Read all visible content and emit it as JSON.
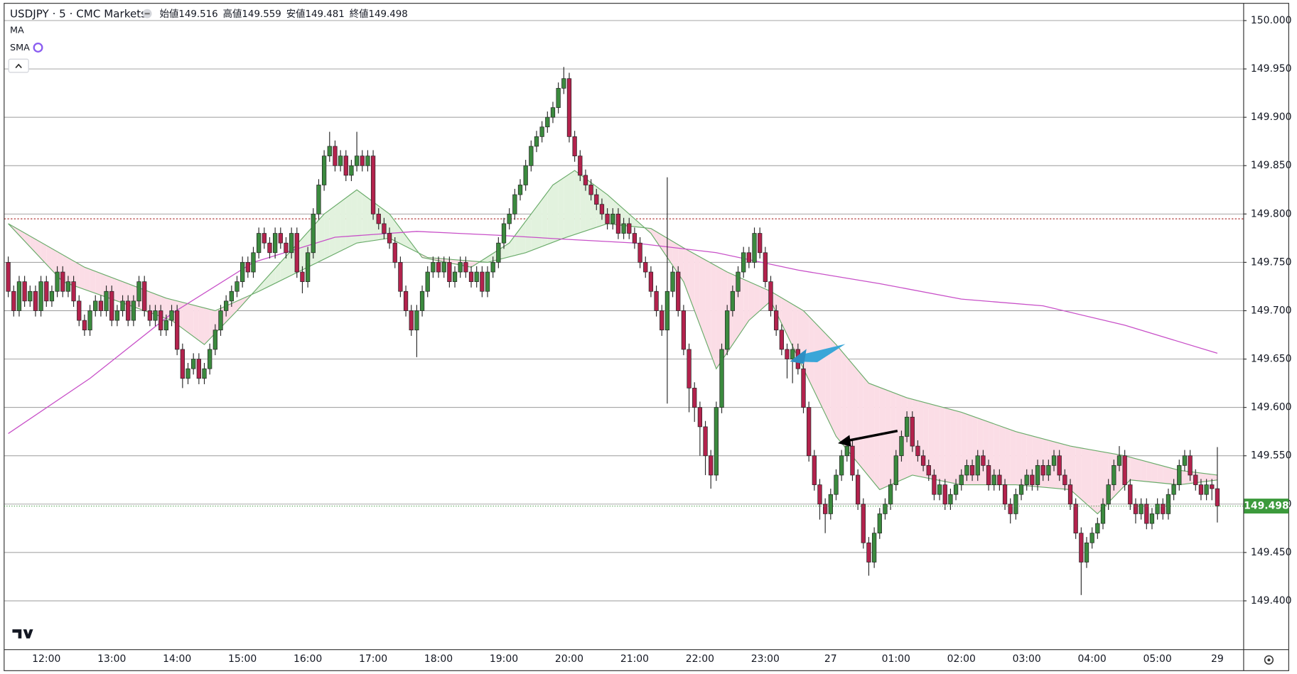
{
  "chart_data": {
    "type": "candlestick",
    "title": "USDJPY · 5 · CMC Markets",
    "ohlc_labels": [
      "始値",
      "高値",
      "安値",
      "終値"
    ],
    "indicators": [
      "MA",
      "SMA"
    ],
    "categories": [
      null,
      null,
      null,
      null,
      null,
      null,
      null,
      "12:00",
      null,
      null,
      null,
      null,
      null,
      null,
      null,
      null,
      null,
      null,
      null,
      "13:00",
      null,
      null,
      null,
      null,
      null,
      null,
      null,
      null,
      null,
      null,
      null,
      "14:00",
      null,
      null,
      null,
      null,
      null,
      null,
      null,
      null,
      null,
      null,
      null,
      "15:00",
      null,
      null,
      null,
      null,
      null,
      null,
      null,
      null,
      null,
      null,
      null,
      "16:00",
      null,
      null,
      null,
      null,
      null,
      null,
      null,
      null,
      null,
      null,
      null,
      "17:00",
      null,
      null,
      null,
      null,
      null,
      null,
      null,
      null,
      null,
      null,
      null,
      "18:00",
      null,
      null,
      null,
      null,
      null,
      null,
      null,
      null,
      null,
      null,
      null,
      "19:00",
      null,
      null,
      null,
      null,
      null,
      null,
      null,
      null,
      null,
      null,
      null,
      "20:00",
      null,
      null,
      null,
      null,
      null,
      null,
      null,
      null,
      null,
      null,
      null,
      "21:00",
      null,
      null,
      null,
      null,
      null,
      null,
      null,
      null,
      null,
      null,
      null,
      "22:00",
      null,
      null,
      null,
      null,
      null,
      null,
      null,
      null,
      null,
      null,
      null,
      "23:00",
      null,
      null,
      null,
      null,
      null,
      null,
      null,
      null,
      null,
      null,
      null,
      "27",
      null,
      null,
      null,
      null,
      null,
      null,
      null,
      null,
      null,
      null,
      null,
      "01:00",
      null,
      null,
      null,
      null,
      null,
      null,
      null,
      null,
      null,
      null,
      null,
      "02:00",
      null,
      null,
      null,
      null,
      null,
      null,
      null,
      null,
      null,
      null,
      null,
      "03:00",
      null,
      null,
      null,
      null,
      null,
      null,
      null,
      null,
      null,
      null,
      null,
      "04:00",
      null,
      null,
      null,
      null,
      null,
      null,
      null,
      null,
      null,
      null,
      null,
      "05:00",
      null,
      null,
      null,
      null,
      null,
      null,
      null,
      null,
      null,
      null,
      "29"
    ],
    "open": [
      149.75,
      149.72,
      149.7,
      149.73,
      149.71,
      149.72,
      149.7,
      149.73,
      149.71,
      149.72,
      149.74,
      149.72,
      149.73,
      149.71,
      149.69,
      149.68,
      149.7,
      149.71,
      149.7,
      149.72,
      149.69,
      149.7,
      149.71,
      149.69,
      149.71,
      149.73,
      149.7,
      149.69,
      149.7,
      149.68,
      149.69,
      149.7,
      149.66,
      149.63,
      149.64,
      149.65,
      149.63,
      149.64,
      149.66,
      149.68,
      149.7,
      149.71,
      149.72,
      149.73,
      149.75,
      149.74,
      149.76,
      149.78,
      149.77,
      149.76,
      149.78,
      149.77,
      149.76,
      149.78,
      149.74,
      149.73,
      149.76,
      149.8,
      149.83,
      149.86,
      149.87,
      149.85,
      149.86,
      149.84,
      149.85,
      149.86,
      149.85,
      149.86,
      149.8,
      149.79,
      149.78,
      149.77,
      149.75,
      149.72,
      149.7,
      149.68,
      149.7,
      149.72,
      149.74,
      149.75,
      149.74,
      149.75,
      149.73,
      149.74,
      149.75,
      149.74,
      149.73,
      149.74,
      149.72,
      149.74,
      149.75,
      149.77,
      149.79,
      149.8,
      149.82,
      149.83,
      149.85,
      149.87,
      149.88,
      149.89,
      149.9,
      149.91,
      149.93,
      149.94,
      149.88,
      149.86,
      149.84,
      149.83,
      149.82,
      149.81,
      149.8,
      149.79,
      149.8,
      149.78,
      149.79,
      149.78,
      149.77,
      149.75,
      149.74,
      149.72,
      149.7,
      149.68,
      149.72,
      149.74,
      149.7,
      149.66,
      149.62,
      149.6,
      149.58,
      149.55,
      149.53,
      149.6,
      149.66,
      149.7,
      149.72,
      149.74,
      149.76,
      149.75,
      149.78,
      149.76,
      149.73,
      149.7,
      149.68,
      149.66,
      149.65,
      149.66,
      149.64,
      149.6,
      149.55,
      149.52,
      149.5,
      149.49,
      149.51,
      149.53,
      149.55,
      149.56,
      149.53,
      149.5,
      149.46,
      149.44,
      149.47,
      149.49,
      149.5,
      149.52,
      149.55,
      149.57,
      149.59,
      149.56,
      149.55,
      149.54,
      149.53,
      149.51,
      149.52,
      149.5,
      149.51,
      149.52,
      149.53,
      149.54,
      149.53,
      149.55,
      149.54,
      149.52,
      149.53,
      149.52,
      149.5,
      149.49,
      149.51,
      149.52,
      149.53,
      149.52,
      149.54,
      149.53,
      149.54,
      149.55,
      149.53,
      149.52,
      149.5,
      149.47,
      149.44,
      149.46,
      149.47,
      149.48,
      149.5,
      149.52,
      149.54,
      149.55,
      149.52,
      149.5,
      149.49,
      149.5,
      149.48,
      149.49,
      149.5,
      149.49,
      149.51,
      149.52,
      149.54,
      149.55,
      149.53,
      149.52,
      149.51,
      149.52,
      149.516
    ],
    "high": [
      149.756,
      149.726,
      149.736,
      149.736,
      149.726,
      149.726,
      149.736,
      149.736,
      149.726,
      149.746,
      149.746,
      149.736,
      149.736,
      149.716,
      149.696,
      149.706,
      149.716,
      149.716,
      149.726,
      149.726,
      149.706,
      149.716,
      149.716,
      149.716,
      149.736,
      149.736,
      149.706,
      149.706,
      149.706,
      149.696,
      149.706,
      149.706,
      149.666,
      149.646,
      149.656,
      149.656,
      149.646,
      149.666,
      149.686,
      149.706,
      149.716,
      149.726,
      149.736,
      149.756,
      149.756,
      149.766,
      149.786,
      149.786,
      149.776,
      149.786,
      149.786,
      149.776,
      149.786,
      149.786,
      149.746,
      149.766,
      149.806,
      149.836,
      149.866,
      149.885,
      149.876,
      149.866,
      149.866,
      149.856,
      149.885,
      149.866,
      149.866,
      149.866,
      149.806,
      149.796,
      149.786,
      149.776,
      149.756,
      149.726,
      149.706,
      149.706,
      149.726,
      149.746,
      149.756,
      149.756,
      149.756,
      149.756,
      149.746,
      149.756,
      149.756,
      149.746,
      149.746,
      149.746,
      149.746,
      149.756,
      149.776,
      149.796,
      149.806,
      149.826,
      149.836,
      149.856,
      149.876,
      149.886,
      149.896,
      149.906,
      149.916,
      149.936,
      149.952,
      149.946,
      149.886,
      149.866,
      149.846,
      149.836,
      149.826,
      149.816,
      149.806,
      149.806,
      149.806,
      149.796,
      149.796,
      149.786,
      149.776,
      149.756,
      149.746,
      149.726,
      149.706,
      149.838,
      149.746,
      149.746,
      149.706,
      149.666,
      149.626,
      149.606,
      149.586,
      149.556,
      149.606,
      149.666,
      149.706,
      149.726,
      149.746,
      149.766,
      149.766,
      149.786,
      149.786,
      149.766,
      149.736,
      149.706,
      149.686,
      149.666,
      149.666,
      149.666,
      149.646,
      149.606,
      149.556,
      149.526,
      149.506,
      149.516,
      149.536,
      149.556,
      149.566,
      149.566,
      149.536,
      149.506,
      149.466,
      149.476,
      149.496,
      149.506,
      149.526,
      149.556,
      149.576,
      149.596,
      149.596,
      149.566,
      149.556,
      149.546,
      149.536,
      149.526,
      149.526,
      149.516,
      149.526,
      149.536,
      149.546,
      149.546,
      149.556,
      149.556,
      149.546,
      149.536,
      149.536,
      149.526,
      149.506,
      149.516,
      149.526,
      149.536,
      149.536,
      149.546,
      149.546,
      149.546,
      149.556,
      149.556,
      149.536,
      149.526,
      149.506,
      149.476,
      149.466,
      149.476,
      149.486,
      149.506,
      149.526,
      149.546,
      149.56,
      149.556,
      149.526,
      149.506,
      149.506,
      149.506,
      149.496,
      149.506,
      149.506,
      149.516,
      149.526,
      149.546,
      149.556,
      149.556,
      149.536,
      149.526,
      149.526,
      149.526,
      149.559
    ],
    "low": [
      149.714,
      149.694,
      149.694,
      149.704,
      149.704,
      149.694,
      149.694,
      149.704,
      149.704,
      149.714,
      149.714,
      149.714,
      149.704,
      149.684,
      149.674,
      149.674,
      149.694,
      149.694,
      149.694,
      149.684,
      149.684,
      149.694,
      149.684,
      149.684,
      149.704,
      149.694,
      149.684,
      149.684,
      149.674,
      149.674,
      149.684,
      149.654,
      149.62,
      149.624,
      149.634,
      149.624,
      149.624,
      149.634,
      149.654,
      149.674,
      149.694,
      149.704,
      149.714,
      149.724,
      149.734,
      149.734,
      149.754,
      149.764,
      149.754,
      149.754,
      149.764,
      149.754,
      149.754,
      149.734,
      149.718,
      149.724,
      149.754,
      149.794,
      149.824,
      149.854,
      149.844,
      149.844,
      149.834,
      149.834,
      149.844,
      149.844,
      149.844,
      149.794,
      149.784,
      149.774,
      149.764,
      149.744,
      149.714,
      149.694,
      149.674,
      149.652,
      149.694,
      149.714,
      149.734,
      149.734,
      149.734,
      149.724,
      149.724,
      149.734,
      149.734,
      149.724,
      149.724,
      149.714,
      149.714,
      149.734,
      149.744,
      149.764,
      149.784,
      149.794,
      149.814,
      149.824,
      149.844,
      149.864,
      149.874,
      149.884,
      149.894,
      149.904,
      149.924,
      149.874,
      149.854,
      149.834,
      149.824,
      149.814,
      149.804,
      149.794,
      149.784,
      149.784,
      149.774,
      149.774,
      149.774,
      149.764,
      149.744,
      149.734,
      149.714,
      149.694,
      149.674,
      149.604,
      149.714,
      149.694,
      149.654,
      149.595,
      149.585,
      149.55,
      149.53,
      149.516,
      149.524,
      149.594,
      149.654,
      149.694,
      149.714,
      149.734,
      149.744,
      149.744,
      149.754,
      149.724,
      149.694,
      149.674,
      149.654,
      149.63,
      149.625,
      149.634,
      149.594,
      149.544,
      149.514,
      149.484,
      149.47,
      149.484,
      149.504,
      149.524,
      149.544,
      149.524,
      149.494,
      149.454,
      149.426,
      149.434,
      149.464,
      149.484,
      149.494,
      149.514,
      149.544,
      149.564,
      149.554,
      149.544,
      149.534,
      149.524,
      149.504,
      149.504,
      149.494,
      149.494,
      149.504,
      149.514,
      149.524,
      149.524,
      149.524,
      149.534,
      149.514,
      149.514,
      149.514,
      149.494,
      149.48,
      149.484,
      149.504,
      149.514,
      149.514,
      149.514,
      149.524,
      149.524,
      149.534,
      149.524,
      149.514,
      149.494,
      149.464,
      149.406,
      149.434,
      149.454,
      149.464,
      149.474,
      149.494,
      149.514,
      149.534,
      149.514,
      149.494,
      149.48,
      149.484,
      149.474,
      149.474,
      149.484,
      149.484,
      149.484,
      149.504,
      149.514,
      149.534,
      149.524,
      149.514,
      149.504,
      149.504,
      149.504,
      149.481
    ],
    "close": [
      149.72,
      149.7,
      149.73,
      149.71,
      149.72,
      149.7,
      149.73,
      149.71,
      149.72,
      149.74,
      149.72,
      149.73,
      149.71,
      149.69,
      149.68,
      149.7,
      149.71,
      149.7,
      149.72,
      149.69,
      149.7,
      149.71,
      149.69,
      149.71,
      149.73,
      149.7,
      149.69,
      149.7,
      149.68,
      149.69,
      149.7,
      149.66,
      149.63,
      149.64,
      149.65,
      149.63,
      149.64,
      149.66,
      149.68,
      149.7,
      149.71,
      149.72,
      149.73,
      149.75,
      149.74,
      149.76,
      149.78,
      149.77,
      149.76,
      149.78,
      149.77,
      149.76,
      149.78,
      149.74,
      149.73,
      149.76,
      149.8,
      149.83,
      149.86,
      149.87,
      149.85,
      149.86,
      149.84,
      149.85,
      149.86,
      149.85,
      149.86,
      149.8,
      149.79,
      149.78,
      149.77,
      149.75,
      149.72,
      149.7,
      149.68,
      149.7,
      149.72,
      149.74,
      149.75,
      149.74,
      149.75,
      149.73,
      149.74,
      149.75,
      149.74,
      149.73,
      149.74,
      149.72,
      149.74,
      149.75,
      149.77,
      149.79,
      149.8,
      149.82,
      149.83,
      149.85,
      149.87,
      149.88,
      149.89,
      149.9,
      149.91,
      149.93,
      149.94,
      149.88,
      149.86,
      149.84,
      149.83,
      149.82,
      149.81,
      149.8,
      149.79,
      149.8,
      149.78,
      149.79,
      149.78,
      149.77,
      149.75,
      149.74,
      149.72,
      149.7,
      149.68,
      149.72,
      149.74,
      149.7,
      149.66,
      149.62,
      149.6,
      149.58,
      149.55,
      149.53,
      149.6,
      149.66,
      149.7,
      149.72,
      149.74,
      149.76,
      149.75,
      149.78,
      149.76,
      149.73,
      149.7,
      149.68,
      149.66,
      149.65,
      149.66,
      149.64,
      149.6,
      149.55,
      149.52,
      149.5,
      149.49,
      149.51,
      149.53,
      149.55,
      149.56,
      149.53,
      149.5,
      149.46,
      149.44,
      149.47,
      149.49,
      149.5,
      149.52,
      149.55,
      149.57,
      149.59,
      149.56,
      149.55,
      149.54,
      149.53,
      149.51,
      149.52,
      149.5,
      149.51,
      149.52,
      149.53,
      149.54,
      149.53,
      149.55,
      149.54,
      149.52,
      149.53,
      149.52,
      149.5,
      149.49,
      149.51,
      149.52,
      149.53,
      149.52,
      149.54,
      149.53,
      149.54,
      149.55,
      149.53,
      149.52,
      149.5,
      149.47,
      149.44,
      149.46,
      149.47,
      149.48,
      149.5,
      149.52,
      149.54,
      149.55,
      149.52,
      149.5,
      149.49,
      149.5,
      149.48,
      149.49,
      149.5,
      149.49,
      149.51,
      149.52,
      149.54,
      149.55,
      149.53,
      149.52,
      149.51,
      149.52,
      149.516,
      149.498
    ],
    "up_color": "#3b8a3e",
    "down_color": "#b3224d",
    "wick_color": "#2a2a2a",
    "ylim": [
      149.35,
      150.017
    ],
    "yticks": [
      {
        "value": 149.4,
        "label": "149.400"
      },
      {
        "value": 149.45,
        "label": "149.450"
      },
      {
        "value": 149.5,
        "label": "149.500"
      },
      {
        "value": 149.55,
        "label": "149.550"
      },
      {
        "value": 149.6,
        "label": "149.600"
      },
      {
        "value": 149.65,
        "label": "149.650"
      },
      {
        "value": 149.7,
        "label": "149.700"
      },
      {
        "value": 149.75,
        "label": "149.750"
      },
      {
        "value": 149.8,
        "label": "149.800"
      },
      {
        "value": 149.85,
        "label": "149.850"
      },
      {
        "value": 149.9,
        "label": "149.900"
      },
      {
        "value": 149.95,
        "label": "149.950"
      },
      {
        "value": 150.0,
        "label": "150.000"
      }
    ],
    "grid": true,
    "hlines": [
      {
        "value": 149.795,
        "color": "#b23a3a"
      }
    ],
    "last_price_color": "#3c9a3c",
    "band": {
      "line_color": "#6aab6a",
      "fill_up": "#e2f2de",
      "fill_down": "#fbdde6",
      "slow": {
        "x": [
          0,
          14,
          29,
          38,
          46,
          55,
          64,
          70,
          77,
          88,
          95,
          102,
          110,
          118,
          124,
          132,
          140,
          146,
          152,
          158,
          165,
          175,
          185,
          195,
          205,
          215,
          222
        ],
        "values": [
          149.79,
          149.745,
          149.713,
          149.7,
          149.72,
          149.745,
          149.77,
          149.775,
          149.755,
          149.75,
          149.76,
          149.775,
          149.79,
          149.785,
          149.765,
          149.74,
          149.72,
          149.7,
          149.665,
          149.625,
          149.61,
          149.595,
          149.575,
          149.56,
          149.55,
          149.535,
          149.53
        ]
      },
      "fast": {
        "x": [
          0,
          10,
          20,
          30,
          36,
          42,
          50,
          58,
          64,
          70,
          76,
          85,
          92,
          100,
          104,
          110,
          118,
          124,
          130,
          136,
          140,
          146,
          152,
          160,
          166,
          175,
          185,
          195,
          200,
          206,
          215,
          222
        ],
        "values": [
          149.79,
          149.73,
          149.71,
          149.69,
          149.665,
          149.7,
          149.75,
          149.8,
          149.825,
          149.8,
          149.755,
          149.745,
          149.77,
          149.83,
          149.845,
          149.82,
          149.78,
          149.73,
          149.64,
          149.69,
          149.71,
          149.64,
          149.57,
          149.515,
          149.53,
          149.52,
          149.52,
          149.515,
          149.49,
          149.525,
          149.52,
          149.525
        ]
      }
    },
    "lines": [
      {
        "color": "#c850c8",
        "x": [
          0,
          15,
          30,
          45,
          60,
          75,
          90,
          102,
          115,
          130,
          145,
          160,
          175,
          190,
          205,
          222
        ],
        "values": [
          149.573,
          149.63,
          149.697,
          149.75,
          149.776,
          149.782,
          149.778,
          149.774,
          149.77,
          149.76,
          149.742,
          149.728,
          149.712,
          149.705,
          149.685,
          149.656
        ]
      }
    ]
  }
}
